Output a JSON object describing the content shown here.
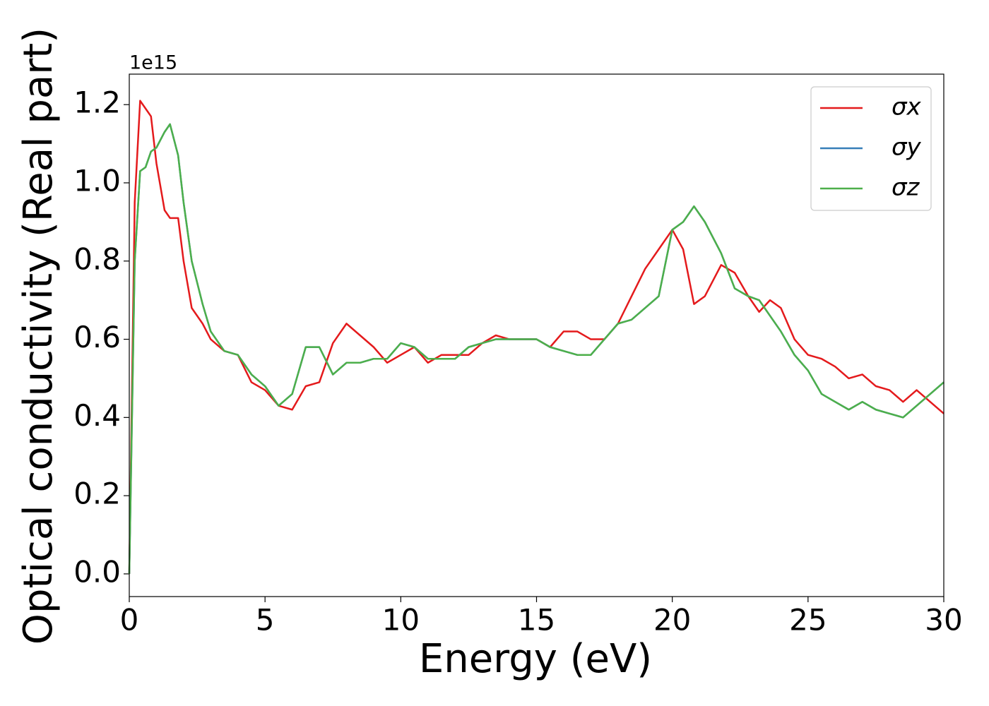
{
  "chart_data": {
    "type": "line",
    "xlabel": "Energy (eV)",
    "ylabel": "Optical conductivity (Real part)",
    "offset_text": "1e15",
    "x": [
      0,
      0.2,
      0.4,
      0.6,
      0.8,
      1.0,
      1.3,
      1.5,
      1.8,
      2.0,
      2.3,
      2.7,
      3.0,
      3.5,
      4,
      4.5,
      5,
      5.5,
      6,
      6.5,
      7,
      7.5,
      8,
      8.5,
      9,
      9.5,
      10,
      10.5,
      11,
      11.5,
      12,
      12.5,
      13,
      13.5,
      14,
      14.5,
      15,
      15.5,
      16,
      16.5,
      17,
      17.5,
      18,
      18.5,
      19,
      19.5,
      20,
      20.4,
      20.8,
      21.2,
      21.8,
      22.3,
      22.8,
      23.2,
      23.6,
      24,
      24.5,
      25,
      25.5,
      26,
      26.5,
      27,
      27.5,
      28,
      28.5,
      29,
      29.5,
      30
    ],
    "series": [
      {
        "name": "σx",
        "color": "#e41a1c",
        "values": [
          0,
          0.95,
          1.21,
          1.19,
          1.17,
          1.05,
          0.93,
          0.91,
          0.91,
          0.8,
          0.68,
          0.64,
          0.6,
          0.57,
          0.56,
          0.49,
          0.47,
          0.43,
          0.42,
          0.48,
          0.49,
          0.59,
          0.64,
          0.61,
          0.58,
          0.54,
          0.56,
          0.58,
          0.54,
          0.56,
          0.56,
          0.56,
          0.59,
          0.61,
          0.6,
          0.6,
          0.6,
          0.58,
          0.62,
          0.62,
          0.6,
          0.6,
          0.64,
          0.71,
          0.78,
          0.83,
          0.88,
          0.83,
          0.69,
          0.71,
          0.79,
          0.77,
          0.71,
          0.67,
          0.7,
          0.68,
          0.6,
          0.56,
          0.55,
          0.53,
          0.5,
          0.51,
          0.48,
          0.47,
          0.44,
          0.47,
          0.44,
          0.41
        ]
      },
      {
        "name": "σy",
        "color": "#377eb8",
        "values": [
          0,
          0.8,
          1.03,
          1.04,
          1.08,
          1.09,
          1.13,
          1.15,
          1.07,
          0.95,
          0.8,
          0.69,
          0.62,
          0.57,
          0.56,
          0.51,
          0.48,
          0.43,
          0.46,
          0.58,
          0.58,
          0.51,
          0.54,
          0.54,
          0.55,
          0.55,
          0.59,
          0.58,
          0.55,
          0.55,
          0.55,
          0.58,
          0.59,
          0.6,
          0.6,
          0.6,
          0.6,
          0.58,
          0.57,
          0.56,
          0.56,
          0.6,
          0.64,
          0.65,
          0.68,
          0.71,
          0.88,
          0.9,
          0.94,
          0.9,
          0.82,
          0.73,
          0.71,
          0.7,
          0.66,
          0.62,
          0.56,
          0.52,
          0.46,
          0.44,
          0.42,
          0.44,
          0.42,
          0.41,
          0.4,
          0.43,
          0.46,
          0.49
        ]
      },
      {
        "name": "σz",
        "color": "#4daf4a",
        "values": [
          0,
          0.8,
          1.03,
          1.04,
          1.08,
          1.09,
          1.13,
          1.15,
          1.07,
          0.95,
          0.8,
          0.69,
          0.62,
          0.57,
          0.56,
          0.51,
          0.48,
          0.43,
          0.46,
          0.58,
          0.58,
          0.51,
          0.54,
          0.54,
          0.55,
          0.55,
          0.59,
          0.58,
          0.55,
          0.55,
          0.55,
          0.58,
          0.59,
          0.6,
          0.6,
          0.6,
          0.6,
          0.58,
          0.57,
          0.56,
          0.56,
          0.6,
          0.64,
          0.65,
          0.68,
          0.71,
          0.88,
          0.9,
          0.94,
          0.9,
          0.82,
          0.73,
          0.71,
          0.7,
          0.66,
          0.62,
          0.56,
          0.52,
          0.46,
          0.44,
          0.42,
          0.44,
          0.42,
          0.41,
          0.4,
          0.43,
          0.46,
          0.49
        ]
      }
    ],
    "xlim": [
      0,
      30
    ],
    "xticks": [
      0,
      5,
      10,
      15,
      20,
      25,
      30
    ],
    "ylim": [
      -0.058,
      1.278
    ],
    "yticks": [
      {
        "value": 0,
        "label": "0.0"
      },
      0.2,
      0.4,
      0.6,
      0.8,
      {
        "value": 1,
        "label": "1.0"
      },
      1.2
    ],
    "grid": false,
    "legend": "upper right"
  }
}
